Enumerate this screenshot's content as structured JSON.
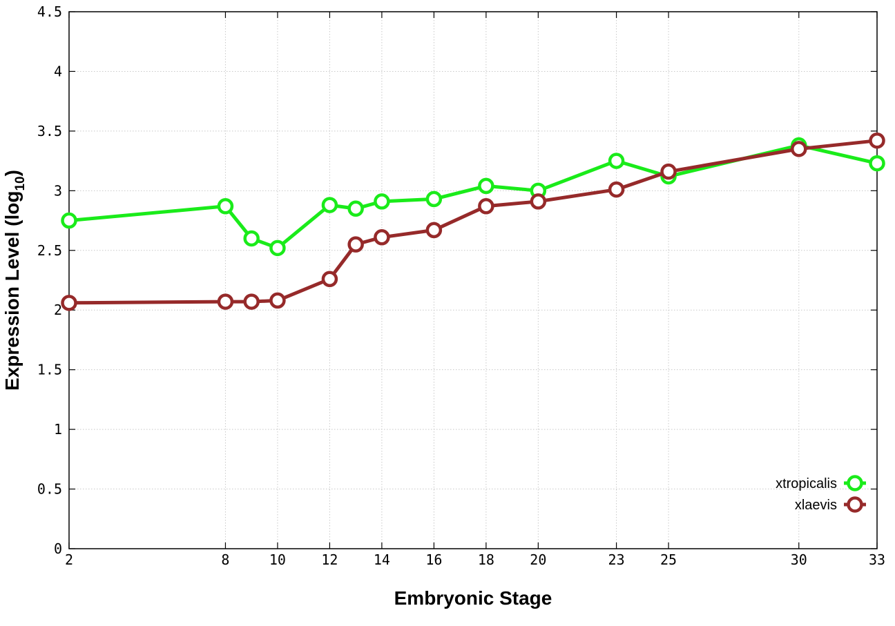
{
  "chart_data": {
    "type": "line",
    "title": "",
    "xlabel": "Embryonic Stage",
    "ylabel": "Expression Level (log",
    "ylabel_sub": "10",
    "ylabel_close": ")",
    "xlim": [
      2,
      33
    ],
    "ylim": [
      0,
      4.5
    ],
    "x_ticks": [
      2,
      8,
      10,
      12,
      14,
      16,
      18,
      20,
      23,
      25,
      30,
      33
    ],
    "x_tick_labels": [
      "2",
      "8",
      "10",
      "12",
      "14",
      "16",
      "18",
      "20",
      "23",
      "25",
      "30",
      "33"
    ],
    "y_ticks": [
      0,
      0.5,
      1,
      1.5,
      2,
      2.5,
      3,
      3.5,
      4,
      4.5
    ],
    "y_tick_labels": [
      "0",
      "0.5",
      "1",
      "1.5",
      "2",
      "2.5",
      "3",
      "3.5",
      "4",
      "4.5"
    ],
    "grid": true,
    "legend_position": "bottom-right",
    "series": [
      {
        "name": "xtropicalis",
        "color": "#1aeb1a",
        "x": [
          2,
          8,
          9,
          10,
          12,
          13,
          14,
          16,
          18,
          20,
          23,
          25,
          30,
          33
        ],
        "values": [
          2.75,
          2.87,
          2.6,
          2.52,
          2.88,
          2.85,
          2.91,
          2.93,
          3.04,
          3.0,
          3.25,
          3.12,
          3.38,
          3.23
        ]
      },
      {
        "name": "xlaevis",
        "color": "#962a2a",
        "x": [
          2,
          8,
          9,
          10,
          12,
          13,
          14,
          16,
          18,
          20,
          23,
          25,
          30,
          33
        ],
        "values": [
          2.06,
          2.07,
          2.07,
          2.08,
          2.26,
          2.55,
          2.61,
          2.67,
          2.87,
          2.91,
          3.01,
          3.16,
          3.35,
          3.42
        ]
      }
    ]
  }
}
